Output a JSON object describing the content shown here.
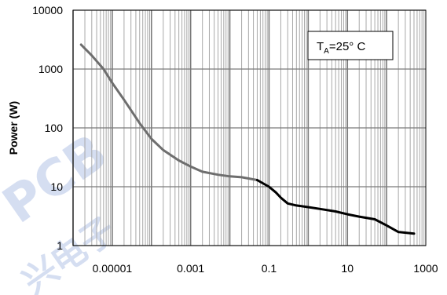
{
  "chart_data": {
    "type": "line",
    "title": "",
    "xlabel": "",
    "ylabel": "Power (W)",
    "x_scale": "log",
    "y_scale": "log",
    "xlim": [
      1e-06,
      1000
    ],
    "ylim": [
      1,
      10000
    ],
    "x_ticks": [
      "0.00001",
      "0.001",
      "0.1",
      "10",
      "1000"
    ],
    "y_ticks": [
      "1",
      "10",
      "100",
      "1000",
      "10000"
    ],
    "grid": true,
    "annotation": {
      "main": "T",
      "sub": "A",
      "rest": "=25° C"
    },
    "series": [
      {
        "x": [
          1.6e-06,
          3e-06,
          6e-06,
          1e-05,
          2e-05,
          5e-05,
          0.0001,
          0.0002,
          0.0005,
          0.001,
          0.002,
          0.005,
          0.01,
          0.02,
          0.05
        ],
        "y": [
          2600,
          1700,
          1000,
          580,
          300,
          120,
          65,
          42,
          28,
          22,
          18,
          16,
          15,
          14.5,
          13
        ],
        "color": "#6e6e6e"
      },
      {
        "x": [
          0.05,
          0.1,
          0.15,
          0.2,
          0.3,
          0.5,
          1,
          2,
          5,
          10,
          20,
          50,
          100,
          200,
          500
        ],
        "y": [
          13,
          10,
          8,
          6.5,
          5.2,
          4.8,
          4.5,
          4.2,
          3.8,
          3.4,
          3.1,
          2.8,
          2.2,
          1.7,
          1.6
        ],
        "color": "#000000"
      }
    ]
  },
  "watermark": {
    "text_main": "PCB",
    "text_cn": "兴电子"
  }
}
